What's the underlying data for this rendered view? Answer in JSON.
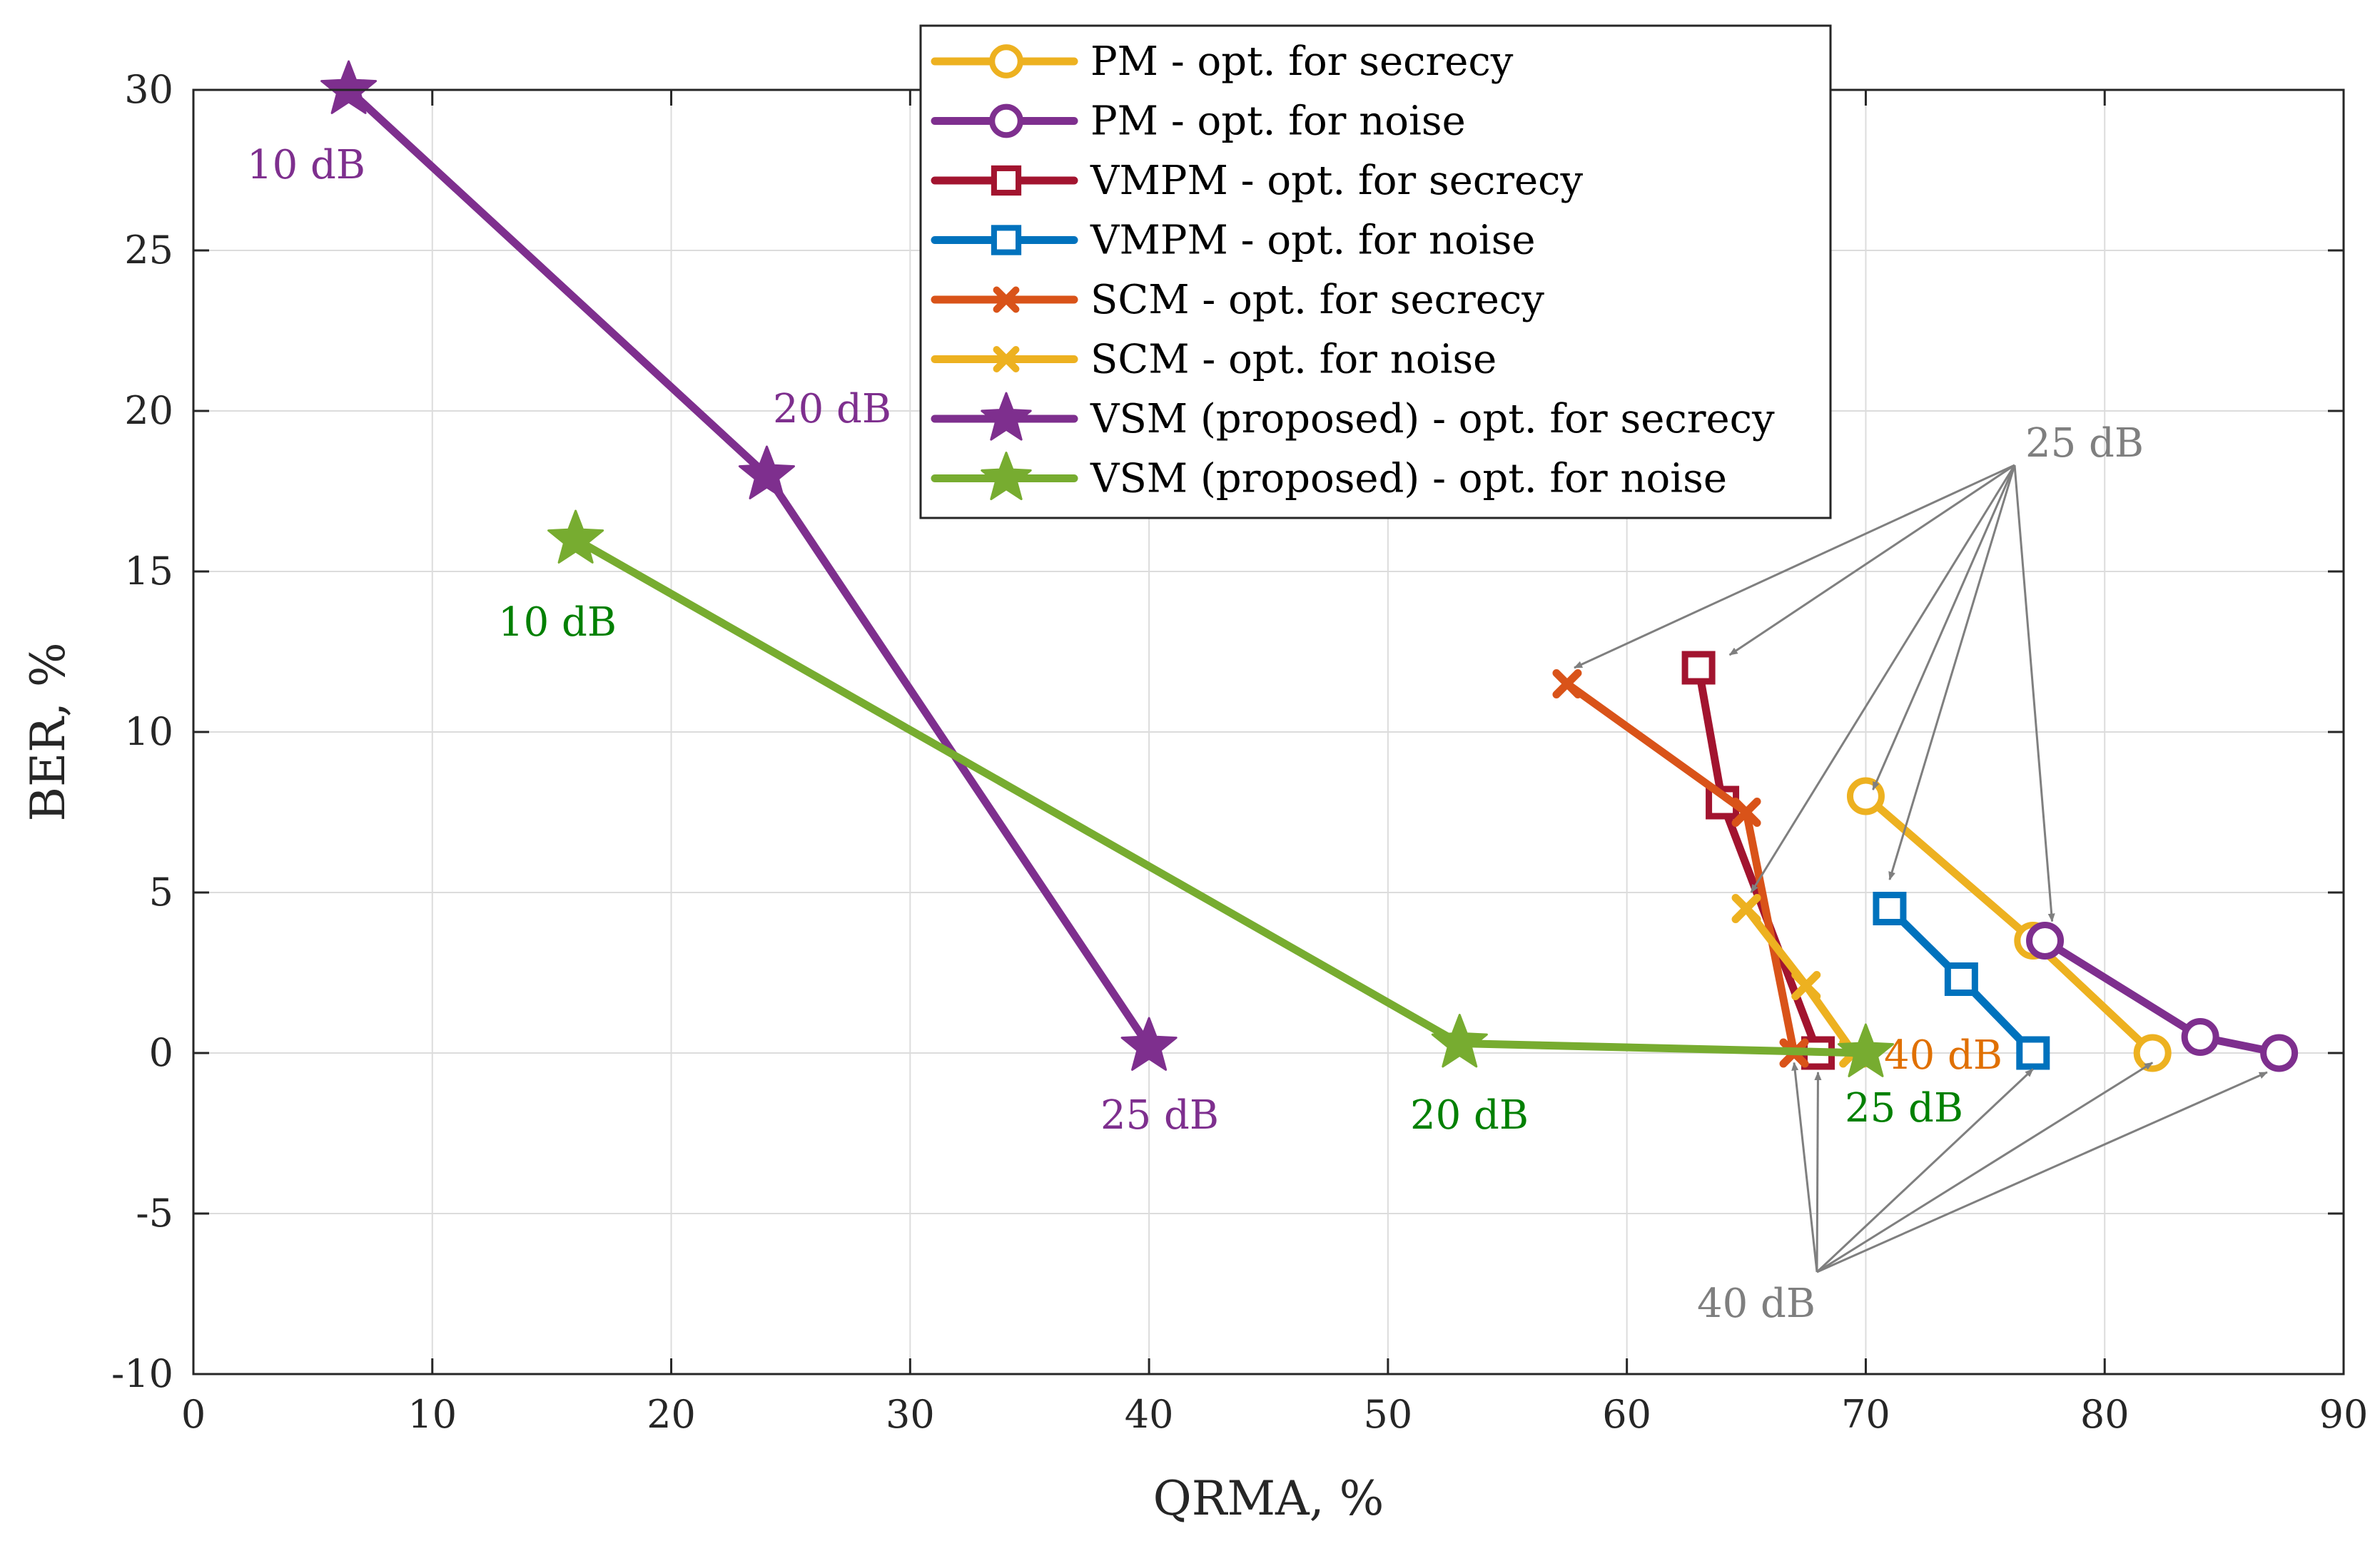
{
  "chart_data": {
    "type": "line",
    "title": "",
    "xlabel": "QRMA, %",
    "ylabel": "BER, %",
    "xlim": [
      0,
      90
    ],
    "ylim": [
      -10,
      30
    ],
    "xticks": [
      0,
      10,
      20,
      30,
      40,
      50,
      60,
      70,
      80,
      90
    ],
    "yticks": [
      -10,
      -5,
      0,
      5,
      10,
      15,
      20,
      25,
      30
    ],
    "grid": true,
    "legend_position": "top-center",
    "series": [
      {
        "name": "PM - opt. for secrecy",
        "color": "#EDB120",
        "marker": "circle",
        "x": [
          70,
          77,
          82
        ],
        "y": [
          8,
          3.5,
          0
        ]
      },
      {
        "name": "PM - opt. for noise",
        "color": "#7E2F8E",
        "marker": "circle",
        "x": [
          77.5,
          84,
          87.3
        ],
        "y": [
          3.5,
          0.5,
          0
        ]
      },
      {
        "name": "VMPM - opt. for secrecy",
        "color": "#A2142F",
        "marker": "square",
        "x": [
          63,
          64,
          68
        ],
        "y": [
          12,
          7.8,
          0
        ]
      },
      {
        "name": "VMPM - opt. for noise",
        "color": "#0072BD",
        "marker": "square",
        "x": [
          71,
          74,
          77
        ],
        "y": [
          4.5,
          2.3,
          0
        ]
      },
      {
        "name": "SCM - opt. for secrecy",
        "color": "#D95319",
        "marker": "x",
        "x": [
          57.5,
          65,
          67
        ],
        "y": [
          11.5,
          7.5,
          0
        ]
      },
      {
        "name": "SCM - opt. for noise",
        "color": "#EDB120",
        "marker": "x",
        "x": [
          65,
          67.5,
          69.5
        ],
        "y": [
          4.5,
          2.1,
          0
        ]
      },
      {
        "name": "VSM (proposed) - opt. for secrecy",
        "color": "#7E2F8E",
        "marker": "star",
        "x": [
          6.5,
          24,
          40
        ],
        "y": [
          30,
          18,
          0.2
        ]
      },
      {
        "name": "VSM (proposed) - opt. for noise",
        "color": "#77AC30",
        "marker": "star",
        "x": [
          16,
          53,
          70
        ],
        "y": [
          16,
          0.3,
          0
        ]
      }
    ],
    "annotations": [
      {
        "text": "10 dB",
        "color": "#7E2F8E"
      },
      {
        "text": "20 dB",
        "color": "#7E2F8E"
      },
      {
        "text": "25 dB",
        "color": "#7E2F8E"
      },
      {
        "text": "10 dB",
        "color": "#008000"
      },
      {
        "text": "20 dB",
        "color": "#008000"
      },
      {
        "text": "25 dB",
        "color": "#008000"
      },
      {
        "text": "40 dB",
        "color": "#E07000"
      },
      {
        "text": "25 dB",
        "color": "#7F7F7F"
      },
      {
        "text": "40 dB",
        "color": "#7F7F7F"
      }
    ]
  }
}
